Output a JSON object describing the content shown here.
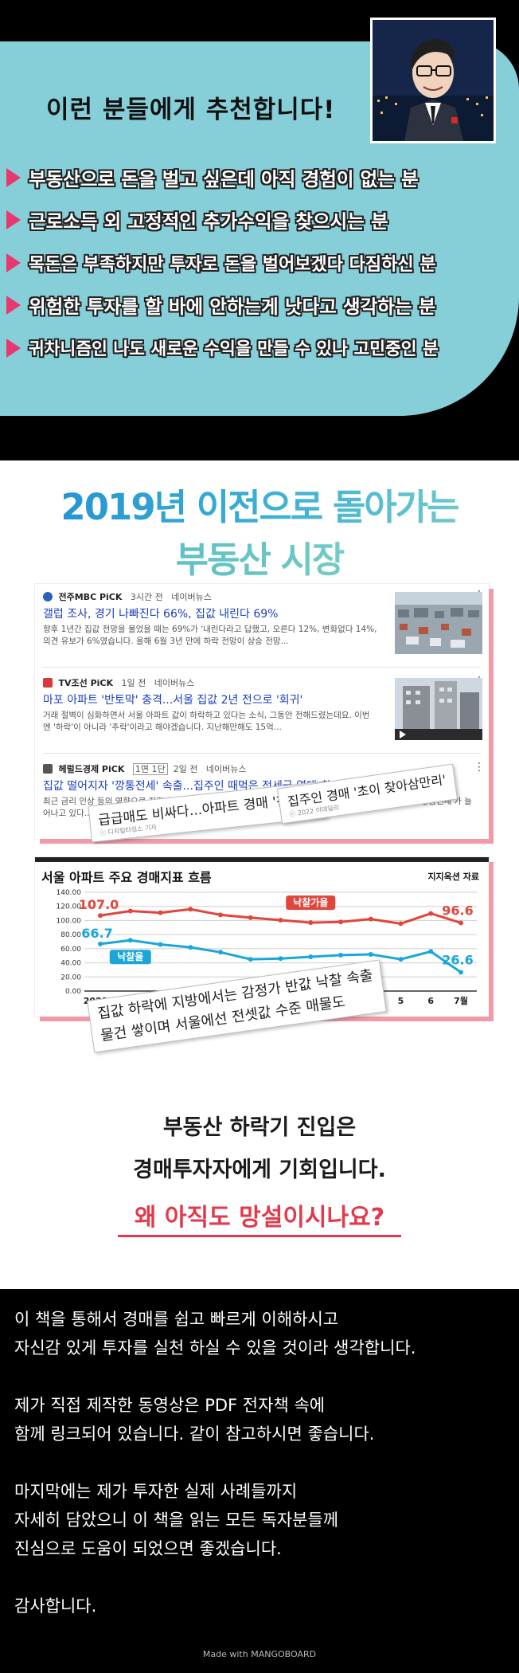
{
  "recommend": {
    "title": "이런 분들에게 추천합니다!",
    "items": [
      "부동산으로 돈을 벌고 싶은데 아직 경험이 없는 분",
      "근로소득 외 고정적인 추가수익을 찾으시는 분",
      "목돈은 부족하지만 투자로 돈을 벌어보겠다 다짐하신 분",
      "위험한 투자를 할 바에 안하는게 낫다고 생각하는 분",
      "귀차니즘인 나도 새로운 수익을 만들 수 있나 고민중인 분"
    ]
  },
  "headline": {
    "line1": "2019년 이전으로 돌아가는",
    "line2": "부동산 시장"
  },
  "news": [
    {
      "source": "전주MBC PiCK",
      "time": "3시간 전",
      "platform": "네이버뉴스",
      "headline": "갤럽 조사, 경기 나빠진다 66%, 집값 내린다 69%",
      "body": "향후 1년간 집값 전망을 물었을 때는 69%가 '내린다라고 답했고, 오른다 12%, 변화없다 14%, 의견 유보가 6%였습니다. 올해 6월 3년 만에 하락 전망이 상승 전망..."
    },
    {
      "source": "TV조선 PiCK",
      "time": "1일 전",
      "platform": "네이버뉴스",
      "headline": "마포 아파트 '반토막' 충격...서울 집값 2년 전으로 '회귀'",
      "body": "거래 절벽이 심화하면서 서울 아파트 값이 하락하고 있다는 소식, 그동안 전해드렸는데요. 이번엔 '하락'이 아니라 '추락'이라고 해야겠습니다. 지난해만해도 15억..."
    },
    {
      "source": "헤럴드경제 PiCK",
      "badge": "1면 1단",
      "time": "2일 전",
      "platform": "네이버뉴스",
      "headline": "집값 떨어지자 '깡통전세' 속출...집주인 때먹은 전세금 역대 최대",
      "body": "최근 금리 인상 등의 영향으로 집값과 전셋값이 동반 하락하면서 세입자에게 보증금을 제때 돌려주지 못하는 '깡통전세'가 늘어나고 있다..."
    }
  ],
  "stamps": {
    "a": "급급매도 비싸다...아파트 경매 '찬바람'",
    "a_sub": "ⓒ 디지털타임스 기자",
    "b": "집주인 경매 '초이 찾아삼만리'",
    "b_sub": "ⓒ 2022 이데일리",
    "c_line1": "집값 하락에 지방에서는 감정가 반값 낙찰 속출",
    "c_line2": "물건 쌓이며 서울에선 전셋값 수준 매물도"
  },
  "chart": {
    "title": "서울 아파트 주요 경매지표 흐름",
    "source": "지지옥션 자료"
  },
  "chart_data": {
    "type": "line",
    "title": "서울 아파트 주요 경매지표 흐름",
    "x": [
      "2021.7",
      "8",
      "9",
      "10",
      "11",
      "12",
      "2022",
      "2",
      "3",
      "4",
      "5",
      "6",
      "7월"
    ],
    "ylim": [
      0,
      140
    ],
    "yticks": [
      "0.00",
      "20.00",
      "40.00",
      "60.00",
      "80.00",
      "100.00",
      "120.00",
      "140.00"
    ],
    "series": [
      {
        "name": "낙찰가율",
        "color": "#e0463c",
        "values": [
          107.0,
          113.5,
          111.0,
          116.0,
          108.0,
          104.0,
          100.5,
          97.0,
          98.0,
          102.0,
          95.5,
          110.0,
          96.6
        ]
      },
      {
        "name": "낙찰율",
        "color": "#1aa7d8",
        "values": [
          66.7,
          72.0,
          66.0,
          62.0,
          55.0,
          45.0,
          46.0,
          48.5,
          51.0,
          52.0,
          45.0,
          56.0,
          26.6
        ]
      }
    ],
    "labels": {
      "first_red": "107.0",
      "last_red": "96.6",
      "first_blue": "66.7",
      "last_blue": "26.6"
    },
    "grid": true
  },
  "cta": {
    "line1": "부동산 하락기 진입은",
    "line2": "경매투자자에게 기회입니다.",
    "line3": "왜 아직도 망설이시나요?"
  },
  "closing": {
    "p1a": "이 책을 통해서 경매를 쉽고 빠르게 이해하시고",
    "p1b": "자신감 있게 투자를 실천 하실 수 있을 것이라 생각합니다.",
    "p2a": "제가 직접 제작한 동영상은 PDF 전자책 속에",
    "p2b": "함께 링크되어 있습니다. 같이 참고하시면 좋습니다.",
    "p3a": "마지막에는 제가 투자한 실제 사례들까지",
    "p3b": "자세히 담았으니 이 책을 읽는 모든 독자분들께",
    "p3c": "진심으로 도움이 되었으면 좋겠습니다.",
    "p4": "감사합니다.",
    "footer": "Made with MANGOBOARD"
  }
}
